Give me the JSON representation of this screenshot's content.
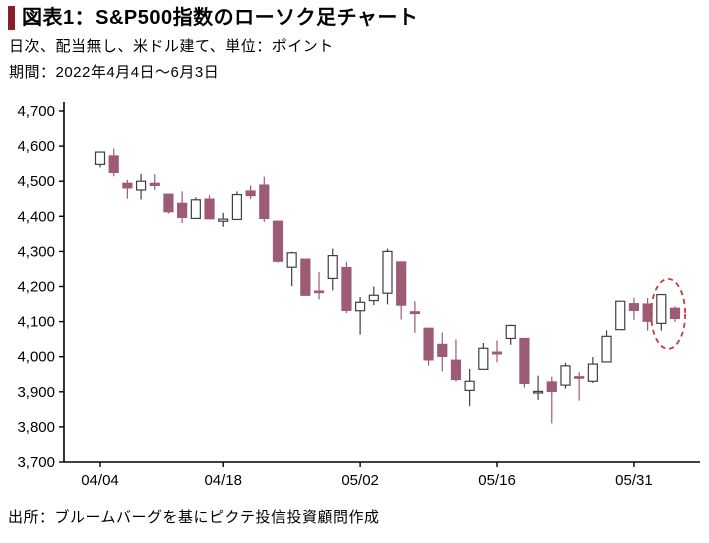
{
  "header": {
    "title": "図表1：S&P500指数のローソク足チャート",
    "subtitle1": "日次、配当無し、米ドル建て、単位：ポイント",
    "subtitle2": "期間：2022年4月4日～6月3日"
  },
  "footer": {
    "source": "出所：ブルームバーグを基にピクテ投信投資顧問作成"
  },
  "colors": {
    "accent_bar": "#8b1d2c",
    "axis": "#000000",
    "up_fill": "#ffffff",
    "up_stroke": "#3f3f3f",
    "down_fill": "#9d5b76",
    "down_stroke": "#9d5b76",
    "highlight_ellipse": "#c43a3a",
    "text": "#000000"
  },
  "chart_data": {
    "type": "candlestick",
    "title": "S&P500指数のローソク足チャート",
    "xlabel": "",
    "ylabel": "ポイント",
    "ylim": [
      3700,
      4700
    ],
    "y_ticks": [
      3700,
      3800,
      3900,
      4000,
      4100,
      4200,
      4300,
      4400,
      4500,
      4600,
      4700
    ],
    "x_ticks": [
      {
        "index": 0,
        "label": "04/04"
      },
      {
        "index": 9,
        "label": "04/18"
      },
      {
        "index": 19,
        "label": "05/02"
      },
      {
        "index": 29,
        "label": "05/16"
      },
      {
        "index": 39,
        "label": "05/31"
      }
    ],
    "dates": [
      "04/04",
      "04/05",
      "04/06",
      "04/07",
      "04/08",
      "04/11",
      "04/12",
      "04/13",
      "04/14",
      "04/18",
      "04/19",
      "04/20",
      "04/21",
      "04/22",
      "04/25",
      "04/26",
      "04/27",
      "04/28",
      "04/29",
      "05/02",
      "05/03",
      "05/04",
      "05/05",
      "05/06",
      "05/09",
      "05/10",
      "05/11",
      "05/12",
      "05/13",
      "05/16",
      "05/17",
      "05/18",
      "05/19",
      "05/20",
      "05/23",
      "05/24",
      "05/25",
      "05/26",
      "05/27",
      "05/31",
      "06/01",
      "06/02",
      "06/03"
    ],
    "ohlc": [
      [
        4548,
        4584,
        4539,
        4583
      ],
      [
        4572,
        4593,
        4514,
        4525
      ],
      [
        4494,
        4504,
        4450,
        4481
      ],
      [
        4475,
        4521,
        4448,
        4500
      ],
      [
        4494,
        4520,
        4475,
        4488
      ],
      [
        4463,
        4464,
        4408,
        4413
      ],
      [
        4437,
        4471,
        4381,
        4397
      ],
      [
        4394,
        4454,
        4393,
        4447
      ],
      [
        4449,
        4460,
        4391,
        4393
      ],
      [
        4386,
        4410,
        4370,
        4392
      ],
      [
        4391,
        4471,
        4391,
        4462
      ],
      [
        4472,
        4488,
        4449,
        4459
      ],
      [
        4489,
        4513,
        4384,
        4394
      ],
      [
        4386,
        4386,
        4268,
        4272
      ],
      [
        4255,
        4299,
        4201,
        4296
      ],
      [
        4278,
        4278,
        4175,
        4175
      ],
      [
        4187,
        4241,
        4163,
        4184
      ],
      [
        4223,
        4308,
        4189,
        4288
      ],
      [
        4254,
        4270,
        4124,
        4132
      ],
      [
        4131,
        4170,
        4063,
        4155
      ],
      [
        4160,
        4200,
        4147,
        4175
      ],
      [
        4181,
        4308,
        4149,
        4300
      ],
      [
        4270,
        4270,
        4106,
        4147
      ],
      [
        4128,
        4158,
        4068,
        4123
      ],
      [
        4081,
        4081,
        3975,
        3991
      ],
      [
        4035,
        4069,
        3958,
        4001
      ],
      [
        3990,
        4049,
        3929,
        3935
      ],
      [
        3904,
        3965,
        3859,
        3930
      ],
      [
        3964,
        4039,
        3964,
        4024
      ],
      [
        4013,
        4046,
        3984,
        4008
      ],
      [
        4052,
        4091,
        4034,
        4089
      ],
      [
        4052,
        4052,
        3912,
        3924
      ],
      [
        3899,
        3946,
        3877,
        3901
      ],
      [
        3928,
        3943,
        3810,
        3901
      ],
      [
        3919,
        3982,
        3909,
        3974
      ],
      [
        3943,
        3956,
        3875,
        3941
      ],
      [
        3930,
        3999,
        3925,
        3979
      ],
      [
        3985,
        4075,
        3985,
        4058
      ],
      [
        4077,
        4158,
        4077,
        4158
      ],
      [
        4151,
        4168,
        4105,
        4132
      ],
      [
        4150,
        4167,
        4074,
        4101
      ],
      [
        4095,
        4178,
        4074,
        4177
      ],
      [
        4138,
        4143,
        4099,
        4109
      ]
    ],
    "annotation": {
      "type": "ellipse",
      "style": "dashed",
      "from_index": 41,
      "to_index": 42,
      "center_value": 4122
    },
    "legend": null,
    "grid": false
  }
}
